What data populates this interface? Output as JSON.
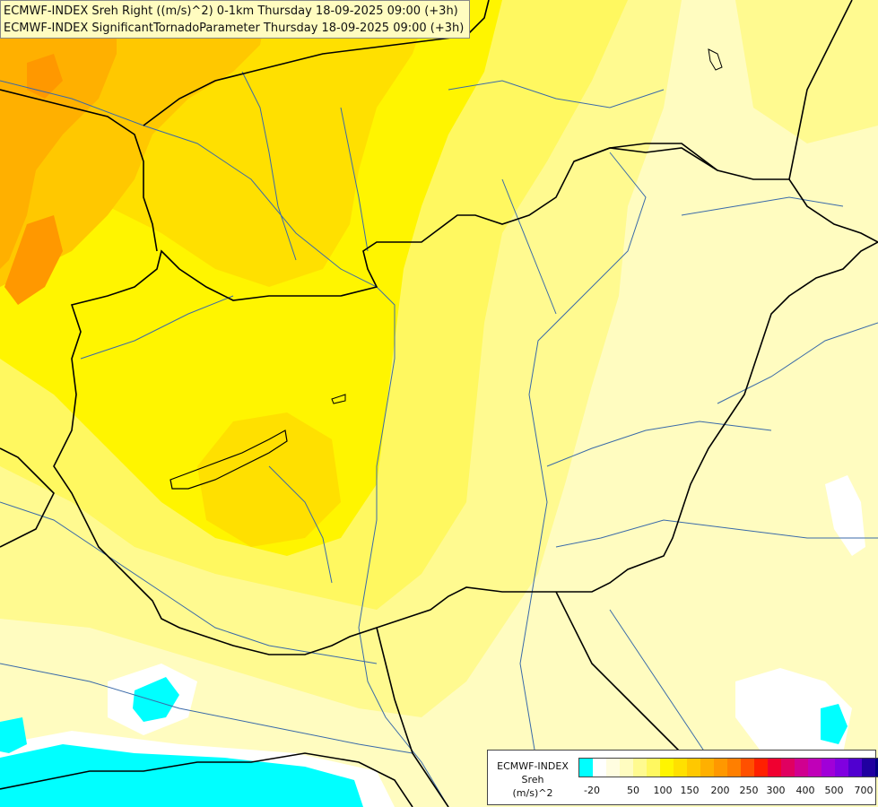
{
  "header": {
    "line1": "ECMWF-INDEX Sreh Right ((m/s)^2) 0-1km Thursday 18-09-2025 09:00 (+3h)",
    "line2": "ECMWF-INDEX SignificantTornadoParameter Thursday 18-09-2025 09:00 (+3h)"
  },
  "legend": {
    "title1": "ECMWF-INDEX",
    "title2": "Sreh",
    "title3": "(m/s)^2",
    "ticks": [
      "-20",
      "50",
      "100",
      "150",
      "200",
      "250",
      "300",
      "400",
      "500",
      "700"
    ],
    "colors": [
      "#00ffff",
      "#ffffff",
      "#fffde0",
      "#fffcc0",
      "#fffa90",
      "#fff860",
      "#fff500",
      "#ffe000",
      "#ffc800",
      "#ffb000",
      "#ff9800",
      "#ff7f00",
      "#ff5000",
      "#ff2000",
      "#f00030",
      "#e00060",
      "#d00090",
      "#c000b8",
      "#a000d8",
      "#8000e0",
      "#5000d0",
      "#2000a0",
      "#000080"
    ]
  },
  "map": {
    "colors": {
      "pale": "#fffcc0",
      "light_yellow": "#fffa90",
      "yellow": "#fff860",
      "bright_yellow": "#fff500",
      "gold": "#ffe000",
      "amber": "#ffc800",
      "orange": "#ffb000",
      "dark_orange": "#ff9800",
      "cyan": "#00ffff",
      "white": "#ffffff",
      "border": "#000000",
      "river": "#3a6aa8"
    }
  }
}
